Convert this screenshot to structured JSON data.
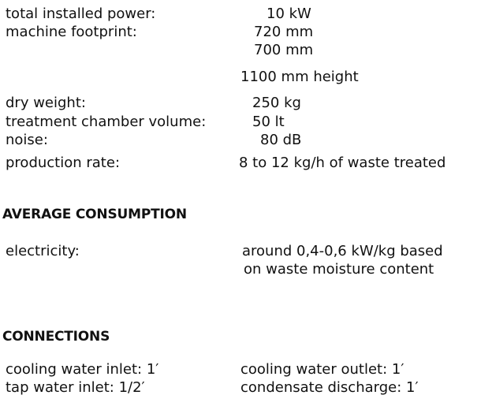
{
  "specs": [
    {
      "label": "total installed power:",
      "values": [
        "10 kW"
      ]
    },
    {
      "label": "machine footprint:",
      "values": [
        "720 mm",
        "700 mm",
        "1100 mm height"
      ]
    },
    {
      "label": "dry weight:",
      "values": [
        "250 kg"
      ]
    },
    {
      "label": "treatment chamber volume:",
      "values": [
        "50 lt"
      ]
    },
    {
      "label": "noise:",
      "values": [
        "80 dB"
      ]
    },
    {
      "label": "production rate:",
      "values": [
        "8 to 12 kg/h of waste treated"
      ]
    }
  ],
  "average_consumption": {
    "heading": "AVERAGE CONSUMPTION",
    "label": "electricity:",
    "value_lines": [
      "around 0,4-0,6 kW/kg based",
      "on waste moisture content"
    ]
  },
  "connections": {
    "heading": "CONNECTIONS",
    "items": [
      "cooling water inlet: 1′",
      "cooling water outlet: 1′",
      "tap water inlet: 1/2′",
      "condensate discharge: 1′"
    ]
  }
}
